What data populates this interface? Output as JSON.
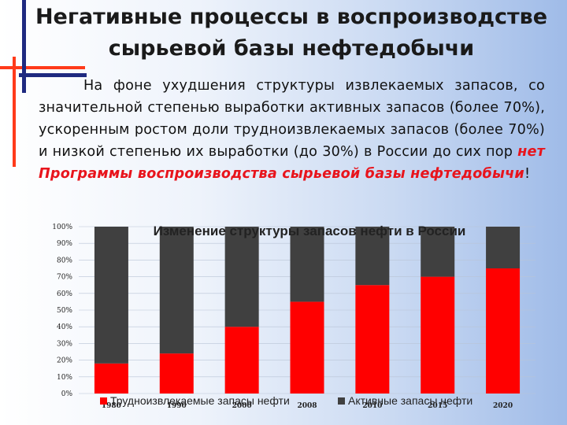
{
  "slide": {
    "title": "Негативные процессы в воспроизводстве\nсырьевой базы нефтедобычи",
    "body_plain": "На фоне ухудшения структуры извлекаемых запасов, со значительной степенью выработки активных запасов (более 70%), ускоренным ростом доли трудноизвлекаемых запасов (более 70%) и низкой степенью их выработки (до 30%) в России до сих пор ",
    "body_highlight": "нет Программы воспроизводства сырьевой базы нефтедобычи",
    "body_end": "!"
  },
  "colors": {
    "hard_to_recover": "#ff0000",
    "active": "#404040",
    "deco_red": "#ff3a1a",
    "deco_navy": "#1f2a80"
  },
  "chart_data": {
    "type": "bar",
    "stacked": true,
    "title": "Изменение структуры запасов нефти в России",
    "categories": [
      "1980",
      "1990",
      "2000",
      "2008",
      "2010",
      "2015",
      "2020"
    ],
    "series": [
      {
        "name": "Трудноизвлекаемые запасы нефти",
        "values": [
          18,
          24,
          40,
          55,
          65,
          70,
          75
        ]
      },
      {
        "name": "Активные запасы нефти",
        "values": [
          82,
          76,
          60,
          45,
          35,
          30,
          25
        ]
      }
    ],
    "y_ticks": [
      "0%",
      "10%",
      "20%",
      "30%",
      "40%",
      "50%",
      "60%",
      "70%",
      "80%",
      "90%",
      "100%"
    ],
    "ylim": [
      0,
      100
    ],
    "grid": true,
    "legend_position": "bottom"
  }
}
